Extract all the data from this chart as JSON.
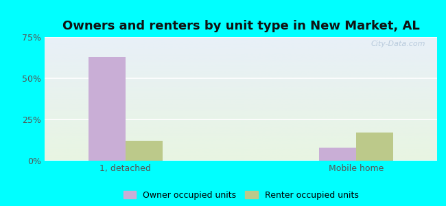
{
  "title": "Owners and renters by unit type in New Market, AL",
  "categories": [
    "1, detached",
    "Mobile home"
  ],
  "owner_values": [
    63,
    8
  ],
  "renter_values": [
    12,
    17
  ],
  "owner_color": "#c9aed6",
  "renter_color": "#bcc98a",
  "ylim": [
    0,
    75
  ],
  "yticks": [
    0,
    25,
    50,
    75
  ],
  "yticklabels": [
    "0%",
    "25%",
    "50%",
    "75%"
  ],
  "bar_width": 0.32,
  "group_positions": [
    1,
    3
  ],
  "legend_owner": "Owner occupied units",
  "legend_renter": "Renter occupied units",
  "bg_color_top": "#e8f0f8",
  "bg_color_bottom": "#e8f5e2",
  "grid_color": "#ffffff",
  "title_fontsize": 13,
  "tick_fontsize": 9,
  "legend_fontsize": 9,
  "watermark": "City-Data.com",
  "outer_bg": "#00ffff",
  "xlim": [
    0.3,
    3.7
  ]
}
